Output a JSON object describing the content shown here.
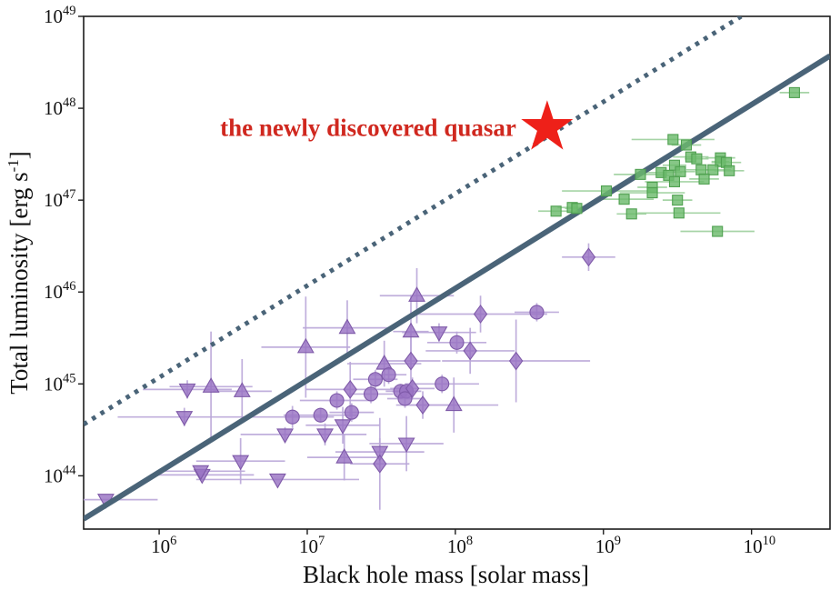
{
  "chart_data": {
    "type": "scatter",
    "title": "",
    "xlabel": "Black hole mass [solar mass]",
    "ylabel_parts": {
      "pre": "Total luminosity [erg s",
      "sup": "-1",
      "post": "]"
    },
    "x_tick_exponents": [
      6,
      7,
      8,
      9,
      10
    ],
    "y_tick_exponents": [
      44,
      45,
      46,
      47,
      48,
      49
    ],
    "xlim_log": [
      5.49,
      10.53
    ],
    "ylim_log": [
      43.42,
      49.0
    ],
    "grid": false,
    "legend": "none",
    "lines": [
      {
        "name": "solid-relation-line",
        "style": "solid",
        "offset_log": 38.04,
        "logM_min": 5.49,
        "logM_max": 10.53,
        "width": 6
      },
      {
        "name": "dotted-relation-line",
        "style": "dotted",
        "offset_log": 39.07,
        "logM_min": 5.49,
        "logM_max": 9.93,
        "width": 5
      }
    ],
    "series": [
      {
        "name": "green-squares",
        "marker": "square",
        "fill": "#6dbb6d",
        "edge": "#4fa050",
        "err_color": "#9ccf9c",
        "points": [
          [
            10.29,
            48.17,
            0.1
          ],
          [
            9.47,
            47.66,
            0.28
          ],
          [
            9.56,
            47.6,
            0.1
          ],
          [
            9.59,
            47.47,
            0.12
          ],
          [
            9.63,
            47.45,
            0.08
          ],
          [
            9.79,
            47.46,
            0.1
          ],
          [
            9.79,
            47.42,
            0.06
          ],
          [
            9.83,
            47.41,
            0.1
          ],
          [
            9.48,
            47.38,
            0.08
          ],
          [
            9.52,
            47.31,
            0.1
          ],
          [
            9.66,
            47.33,
            0.1
          ],
          [
            9.74,
            47.33,
            0.12
          ],
          [
            9.85,
            47.32,
            0.1
          ],
          [
            9.39,
            47.3,
            0.14
          ],
          [
            9.44,
            47.27,
            0.08
          ],
          [
            9.25,
            47.28,
            0.18
          ],
          [
            9.48,
            47.2,
            0.2
          ],
          [
            9.68,
            47.23,
            0.1
          ],
          [
            9.5,
            47.0,
            0.1
          ],
          [
            9.33,
            47.14,
            0.1
          ],
          [
            9.33,
            47.08,
            0.22
          ],
          [
            9.02,
            47.1,
            0.3
          ],
          [
            9.14,
            47.01,
            0.2
          ],
          [
            8.68,
            46.88,
            0.12
          ],
          [
            8.79,
            46.92,
            0.1
          ],
          [
            8.82,
            46.91,
            0.08
          ],
          [
            9.19,
            46.85,
            0.1
          ],
          [
            9.51,
            46.86,
            0.28
          ],
          [
            9.77,
            46.66,
            0.25
          ]
        ]
      },
      {
        "name": "purple-markers",
        "fill": "#9873c3",
        "edge": "#7e59a8",
        "err_color": "#b9a6d8",
        "points": [
          [
            5.64,
            43.74,
            "v",
            0.35,
            0.0
          ],
          [
            6.29,
            44.01,
            "v",
            0.35,
            0.0
          ],
          [
            6.19,
            44.94,
            "v",
            0.3,
            0.1
          ],
          [
            6.35,
            44.97,
            "t",
            0.28,
            0.6
          ],
          [
            6.56,
            44.92,
            "t",
            0.2,
            0.35
          ],
          [
            6.17,
            44.64,
            "v",
            0.45,
            0.1
          ],
          [
            6.9,
            44.64,
            "c",
            0.28,
            0.12
          ],
          [
            6.85,
            44.45,
            "v",
            0.3,
            0.08
          ],
          [
            6.55,
            44.16,
            "v",
            0.3,
            0.25
          ],
          [
            6.28,
            44.05,
            "v",
            0.3,
            0.0
          ],
          [
            6.8,
            43.96,
            "v",
            0.55,
            0.0
          ],
          [
            7.74,
            45.96,
            "t",
            0.25,
            0.3
          ],
          [
            8.17,
            45.76,
            "d",
            0.45,
            0.2
          ],
          [
            8.55,
            45.78,
            "c",
            0.15,
            0.1
          ],
          [
            7.27,
            45.61,
            "t",
            0.3,
            0.3
          ],
          [
            7.89,
            45.56,
            "v",
            0.25,
            0.1
          ],
          [
            7.7,
            45.57,
            "t",
            0.12,
            0.4
          ],
          [
            6.99,
            45.4,
            "t",
            0.3,
            0.55
          ],
          [
            8.01,
            45.45,
            "c",
            0.2,
            0.12
          ],
          [
            8.1,
            45.36,
            "d",
            0.3,
            0.25
          ],
          [
            8.41,
            45.25,
            "d",
            0.5,
            0.45
          ],
          [
            7.7,
            45.25,
            "d",
            0.2,
            0.3
          ],
          [
            7.52,
            45.22,
            "t",
            0.25,
            0.25
          ],
          [
            7.46,
            45.05,
            "c",
            0.15,
            0.1
          ],
          [
            7.55,
            45.1,
            "c",
            0.12,
            0.1
          ],
          [
            7.29,
            44.94,
            "d",
            0.3,
            0.3
          ],
          [
            7.63,
            44.92,
            "c",
            0.1,
            0.08
          ],
          [
            7.67,
            44.92,
            "c",
            0.1,
            0.08
          ],
          [
            7.66,
            44.84,
            "c",
            0.12,
            0.1
          ],
          [
            7.71,
            44.95,
            "d",
            0.15,
            0.12
          ],
          [
            7.43,
            44.89,
            "c",
            0.15,
            0.1
          ],
          [
            7.2,
            44.82,
            "c",
            0.25,
            0.1
          ],
          [
            7.99,
            44.77,
            "t",
            0.3,
            0.3
          ],
          [
            7.78,
            44.77,
            "d",
            0.18,
            0.15
          ],
          [
            7.91,
            45.0,
            "c",
            0.25,
            0.1
          ],
          [
            7.09,
            44.66,
            "c",
            0.25,
            0.08
          ],
          [
            7.24,
            44.55,
            "v",
            0.25,
            0.2
          ],
          [
            7.12,
            44.45,
            "v",
            0.28,
            0.12
          ],
          [
            7.67,
            44.35,
            "v",
            0.25,
            0.3
          ],
          [
            7.25,
            44.2,
            "t",
            0.25,
            0.25
          ],
          [
            7.49,
            44.26,
            "v",
            0.3,
            0.15
          ],
          [
            7.49,
            44.13,
            "d",
            0.2,
            0.5
          ],
          [
            8.9,
            46.38,
            "d",
            0.18,
            0.15
          ],
          [
            7.3,
            44.69,
            "c",
            0.15,
            0.1
          ]
        ]
      }
    ],
    "star": {
      "logM": 8.62,
      "logL": 47.79
    },
    "annotation": {
      "text": "the newly discovered quasar"
    }
  },
  "colors": {
    "frame": "#1c1c1c",
    "tick_text": "#111111",
    "line": "#4a6478",
    "star": "#ee2019",
    "annotation": "#d0281f"
  }
}
